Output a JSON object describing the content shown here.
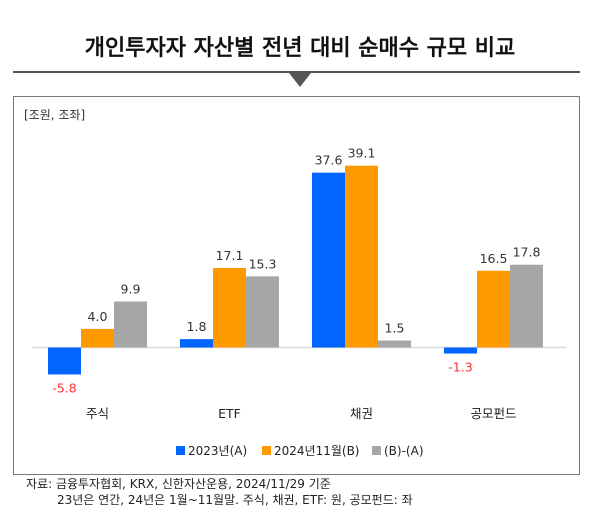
{
  "chart_data": {
    "type": "bar",
    "title": "개인투자자 자산별 전년 대비 순매수 규모 비교",
    "unit_label": "[조원, 조좌]",
    "categories": [
      "주식",
      "ETF",
      "채권",
      "공모펀드"
    ],
    "series": [
      {
        "name": "2023년(A)",
        "color": "#0066FF",
        "values": [
          -5.8,
          1.8,
          37.6,
          -1.3
        ]
      },
      {
        "name": "2024년11월(B)",
        "color": "#FF9900",
        "values": [
          4.0,
          17.1,
          39.1,
          16.5
        ]
      },
      {
        "name": "(B)-(A)",
        "color": "#A6A6A6",
        "values": [
          9.9,
          15.3,
          1.5,
          17.8
        ]
      }
    ],
    "negative_label_color": "#FF3333",
    "legend_position": "bottom",
    "grid": false
  },
  "footnote": {
    "line1": "자료: 금융투자협회, KRX, 신한자산운용, 2024/11/29 기준",
    "line2": "23년은 연간, 24년은 1월~11월말. 주식, 채권, ETF: 원, 공모펀드: 좌"
  }
}
